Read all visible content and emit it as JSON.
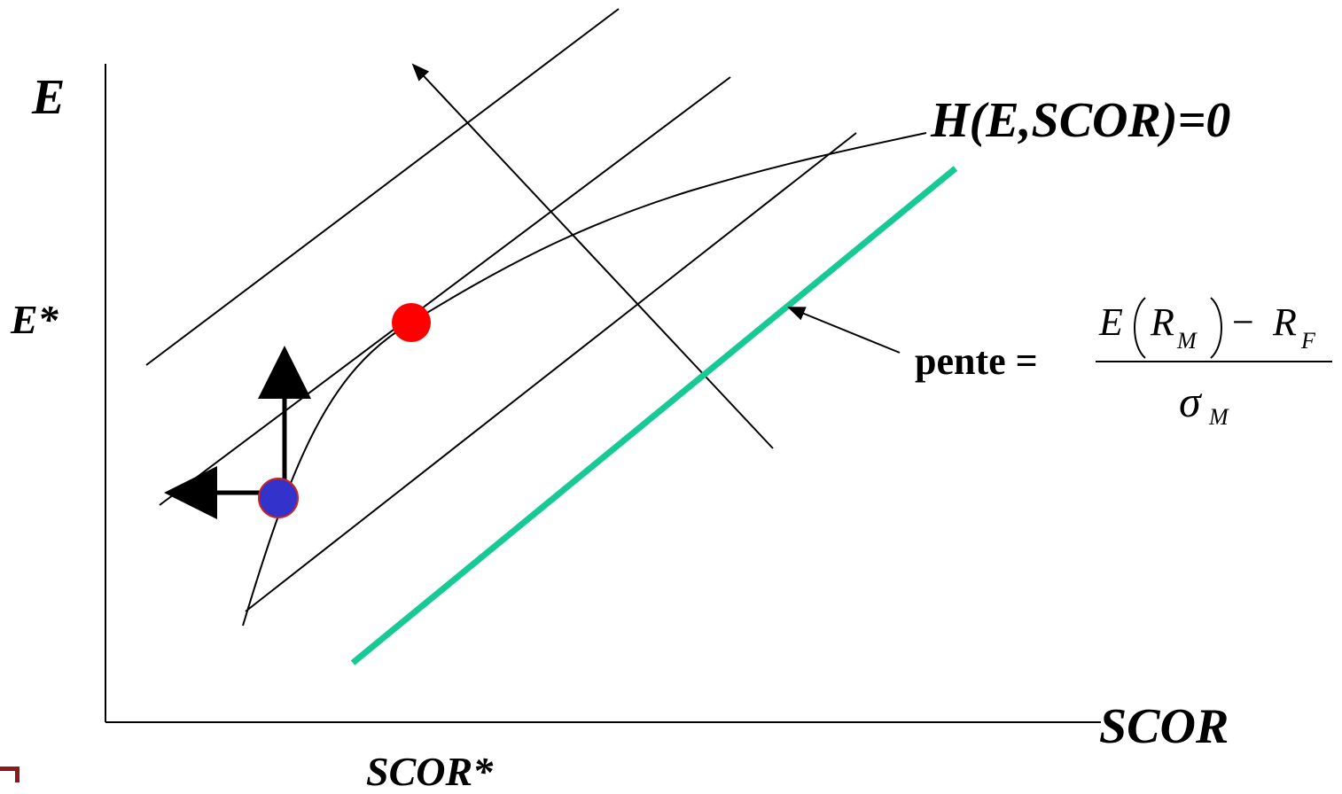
{
  "labels": {
    "y_axis": "E",
    "x_axis": "SCOR",
    "y_star": "E*",
    "x_star": "SCOR*",
    "constraint": "H(E,SCOR)=0",
    "slope_label": "pente ="
  },
  "formula": {
    "numerator_E": "E",
    "R": "R",
    "sub_M": "M",
    "minus": "−",
    "sub_F": "F",
    "sigma": "σ"
  },
  "colors": {
    "line": "#000000",
    "slope_line": "#17c995",
    "optimum_point": "#ff0000",
    "initial_point": "#3333cc",
    "initial_point_border": "#cc2222"
  }
}
